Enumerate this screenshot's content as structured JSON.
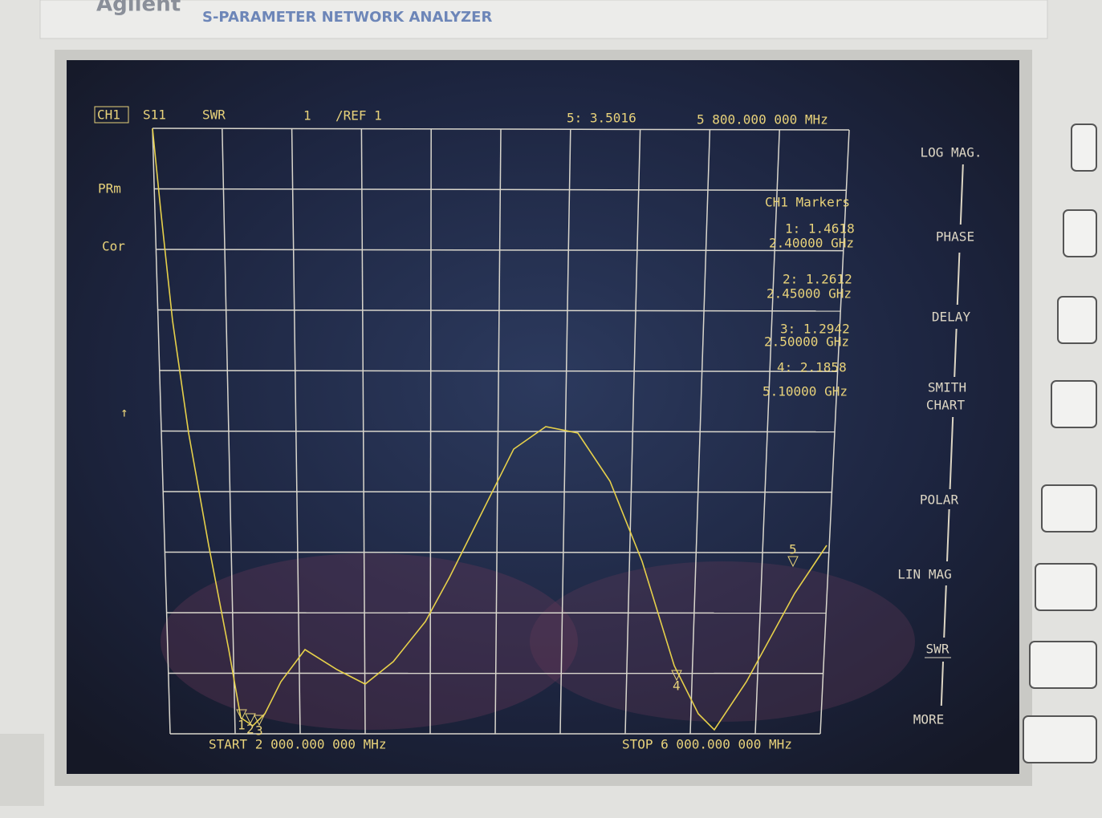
{
  "header": {
    "brand": "Agilent",
    "model": "S-PARAMETER NETWORK ANALYZER"
  },
  "status": {
    "channel": "CH1",
    "parameter": "S11",
    "format": "SWR",
    "scale": "1",
    "reference": "/REF 1",
    "active_marker": "5: 3.5016",
    "active_frequency": "5 800.000 000 MHz"
  },
  "left_labels": [
    "PRm",
    "Cor",
    "↑"
  ],
  "markers": {
    "title": "CH1 Markers",
    "entries": [
      {
        "reading": "1: 1.4618",
        "frequency": "2.40000 GHz"
      },
      {
        "reading": "2: 1.2612",
        "frequency": "2.45000 GHz"
      },
      {
        "reading": "3: 1.2942",
        "frequency": "2.50000 GHz"
      },
      {
        "reading": "4: 2.1858",
        "frequency": "5.10000 GHz"
      }
    ]
  },
  "marker_flags": [
    "1",
    "2",
    "3",
    "4",
    "5"
  ],
  "footer": {
    "start": "START 2 000.000 000 MHz",
    "stop": "STOP 6 000.000 000 MHz"
  },
  "softkeys": [
    "LOG MAG.",
    "PHASE",
    "DELAY",
    "SMITH",
    "CHART",
    "POLAR",
    "LIN MAG",
    "SWR",
    "MORE"
  ]
}
